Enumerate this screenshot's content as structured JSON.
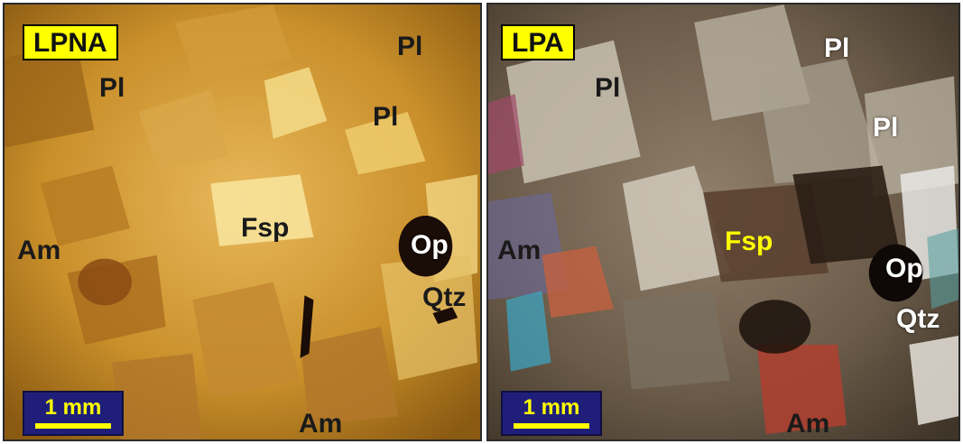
{
  "figure": {
    "panels": [
      {
        "tag": "LPNA",
        "scale_label": "1 mm",
        "labels": {
          "pl_top": "Pl",
          "pl_left": "Pl",
          "pl_mid": "Pl",
          "fsp": "Fsp",
          "am_left": "Am",
          "op": "Op",
          "qtz": "Qtz",
          "am_bottom": "Am"
        }
      },
      {
        "tag": "LPA",
        "scale_label": "1 mm",
        "labels": {
          "pl_top": "Pl",
          "pl_left": "Pl",
          "pl_right": "Pl",
          "fsp": "Fsp",
          "am_left": "Am",
          "op": "Op",
          "qtz": "Qtz",
          "am_bottom": "Am"
        }
      }
    ],
    "colors": {
      "tag_background": "#ffff00",
      "scale_background": "#1f1f7a",
      "scale_foreground": "#ffff00",
      "fsp_label_xpl": "#ffff00"
    }
  }
}
